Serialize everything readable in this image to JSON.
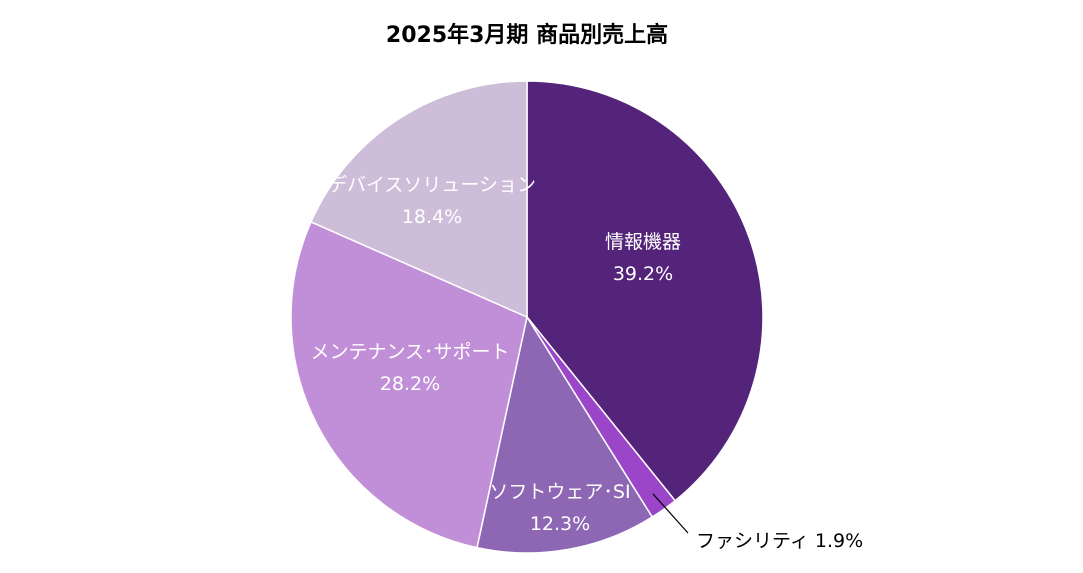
{
  "chart_data": {
    "type": "pie",
    "title": "2025年3月期 商品別売上高",
    "slices": [
      {
        "name": "情報機器",
        "value": 39.2,
        "label": "39.2%",
        "color": "#54237A",
        "label_color": "#FFFFFF",
        "label_position": "inside"
      },
      {
        "name": "ファシリティ",
        "value": 1.9,
        "label": "1.9%",
        "color": "#9B45C9",
        "label_color": "#000000",
        "label_position": "outside"
      },
      {
        "name": "ソフトウェア･SI",
        "value": 12.3,
        "label": "12.3%",
        "color": "#8E67B4",
        "label_color": "#FFFFFF",
        "label_position": "inside"
      },
      {
        "name": "メンテナンス･サポート",
        "value": 28.2,
        "label": "28.2%",
        "color": "#C18FD7",
        "label_color": "#FFFFFF",
        "label_position": "inside"
      },
      {
        "name": "デバイスソリューション",
        "value": 18.4,
        "label": "18.4%",
        "color": "#CEBDD9",
        "label_color": "#FFFFFF",
        "label_position": "inside"
      }
    ],
    "start_angle": "12 o'clock",
    "direction": "clockwise",
    "legend": "none"
  }
}
